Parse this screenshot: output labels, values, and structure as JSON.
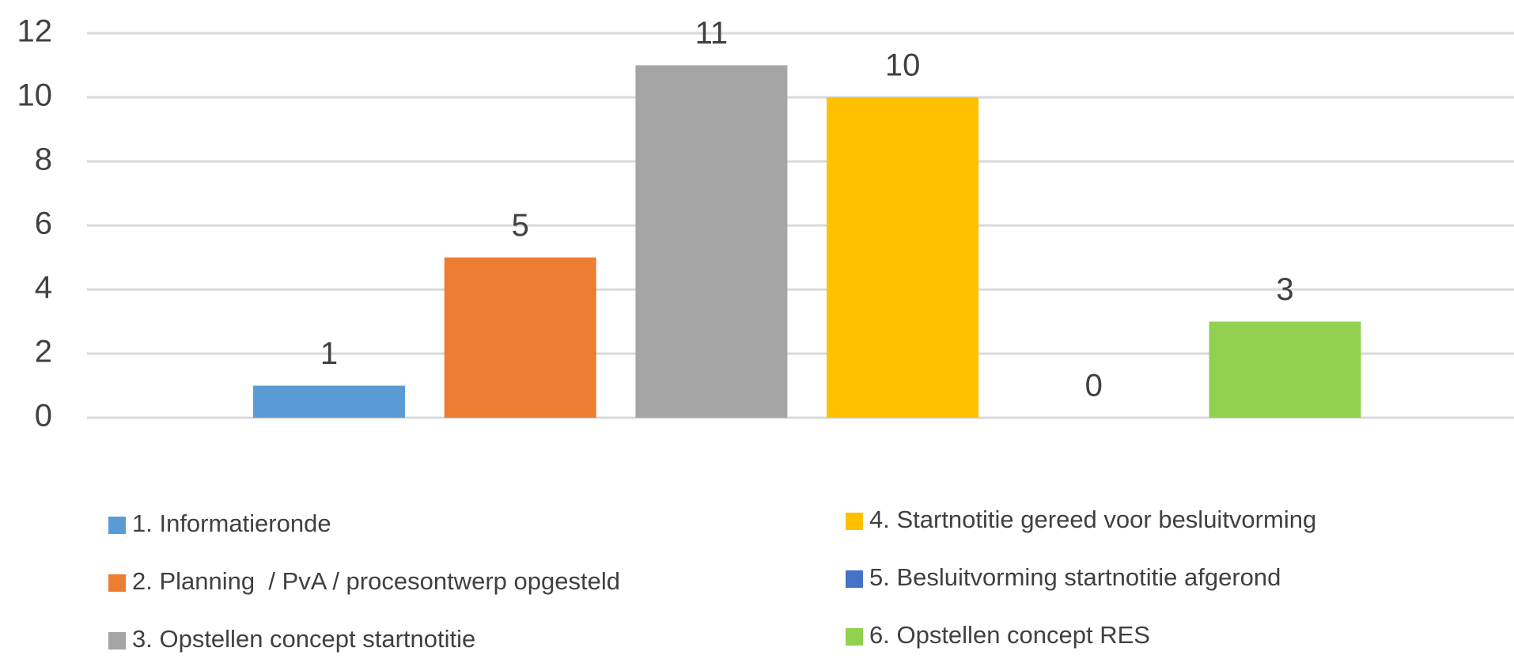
{
  "chart_data": {
    "type": "bar",
    "categories": [
      null
    ],
    "series": [
      {
        "name": "1. Informatieronde",
        "color": "#5b9bd5",
        "values": [
          1
        ]
      },
      {
        "name": "2. Planning  / PvA / procesontwerp opgesteld",
        "color": "#ed7d31",
        "values": [
          5
        ]
      },
      {
        "name": "3. Opstellen concept startnotitie",
        "color": "#a5a5a5",
        "values": [
          11
        ]
      },
      {
        "name": "4. Startnotitie gereed voor besluitvorming",
        "color": "#ffc000",
        "values": [
          10
        ]
      },
      {
        "name": "5. Besluitvorming startnotitie afgerond",
        "color": "#4472c4",
        "values": [
          0
        ]
      },
      {
        "name": "6. Opstellen concept RES",
        "color": "#92d050",
        "values": [
          3
        ]
      }
    ],
    "ylim": [
      0,
      12
    ],
    "yticks": [
      0,
      2,
      4,
      6,
      8,
      10,
      12
    ],
    "grid": true,
    "legend": "bottom"
  }
}
